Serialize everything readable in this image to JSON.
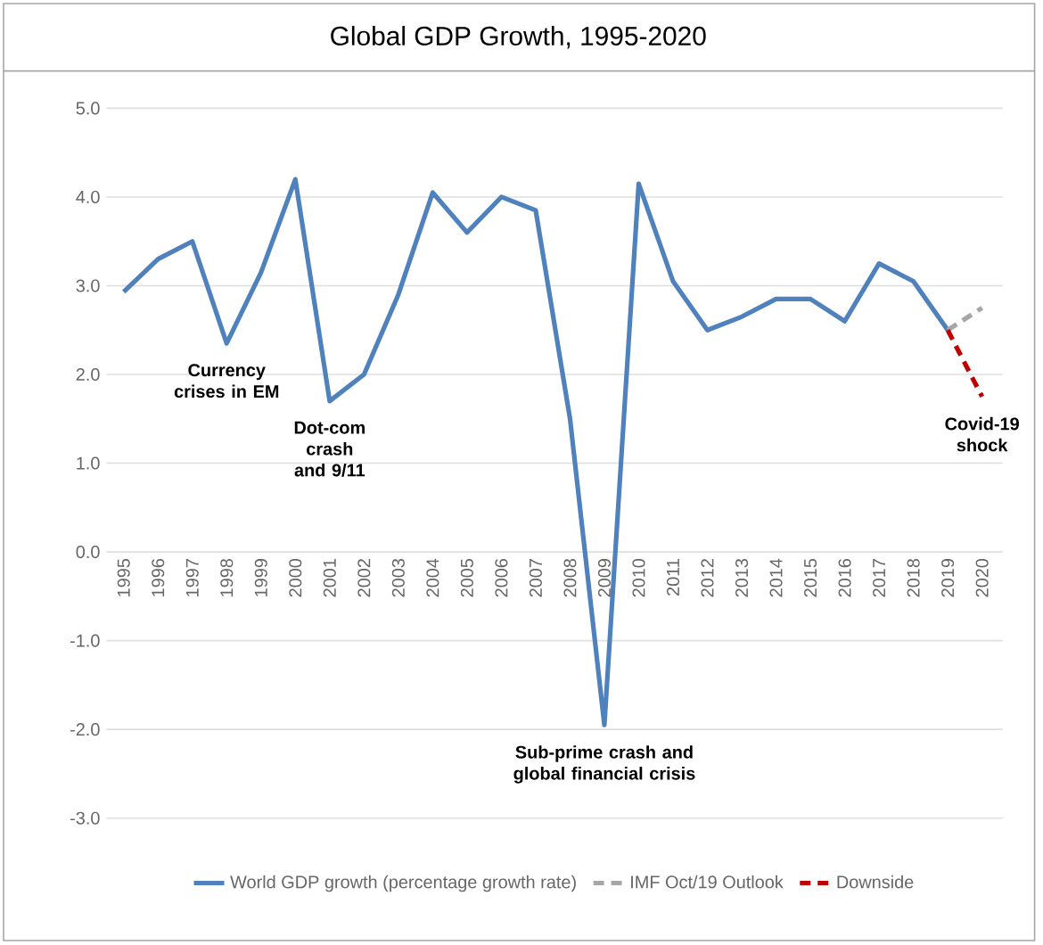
{
  "chart_data": {
    "type": "line",
    "title": "Global GDP Growth, 1995-2020",
    "categories": [
      "1995",
      "1996",
      "1997",
      "1998",
      "1999",
      "2000",
      "2001",
      "2002",
      "2003",
      "2004",
      "2005",
      "2006",
      "2007",
      "2008",
      "2009",
      "2010",
      "2011",
      "2012",
      "2013",
      "2014",
      "2015",
      "2016",
      "2017",
      "2018",
      "2019",
      "2020"
    ],
    "series": [
      {
        "name": "World GDP growth (percentage growth rate)",
        "color": "#4f81bd",
        "line_style": "solid",
        "values": [
          2.93,
          3.3,
          3.5,
          2.35,
          3.15,
          4.2,
          1.7,
          2.0,
          2.9,
          4.05,
          3.6,
          4.0,
          3.85,
          1.5,
          -1.95,
          4.15,
          3.05,
          2.5,
          2.65,
          2.85,
          2.85,
          2.6,
          3.25,
          3.05,
          2.5,
          null
        ]
      },
      {
        "name": "IMF Oct/19 Outlook",
        "color": "#a6a6a6",
        "line_style": "dashed",
        "values": [
          null,
          null,
          null,
          null,
          null,
          null,
          null,
          null,
          null,
          null,
          null,
          null,
          null,
          null,
          null,
          null,
          null,
          null,
          null,
          null,
          null,
          null,
          null,
          null,
          2.5,
          2.75
        ]
      },
      {
        "name": "Downside",
        "color": "#c00000",
        "line_style": "dashed",
        "values": [
          null,
          null,
          null,
          null,
          null,
          null,
          null,
          null,
          null,
          null,
          null,
          null,
          null,
          null,
          null,
          null,
          null,
          null,
          null,
          null,
          null,
          null,
          null,
          null,
          2.5,
          1.75
        ]
      }
    ],
    "ylim": [
      -3.0,
      5.0
    ],
    "yticks": [
      {
        "value": -3,
        "label": "-3.0"
      },
      {
        "value": -2,
        "label": "-2.0"
      },
      {
        "value": -1,
        "label": "-1.0"
      },
      {
        "value": 0,
        "label": "0.0"
      },
      {
        "value": 1,
        "label": "1.0"
      },
      {
        "value": 2,
        "label": "2.0"
      },
      {
        "value": 3,
        "label": "3.0"
      },
      {
        "value": 4,
        "label": "4.0"
      },
      {
        "value": 5,
        "label": "5.0"
      }
    ],
    "grid": "y",
    "legend": "bottom",
    "annotations": [
      {
        "text": "Currency crises in EM",
        "x": "1998",
        "y": 2.35
      },
      {
        "text": "Dot-com crash and 9/11",
        "x": "2001",
        "y": 1.7
      },
      {
        "text": "Sub-prime  crash and global financial crisis",
        "x": "2009",
        "y": -1.95
      },
      {
        "text": "Covid-19 shock",
        "x": "2020",
        "y": 1.75
      }
    ]
  }
}
